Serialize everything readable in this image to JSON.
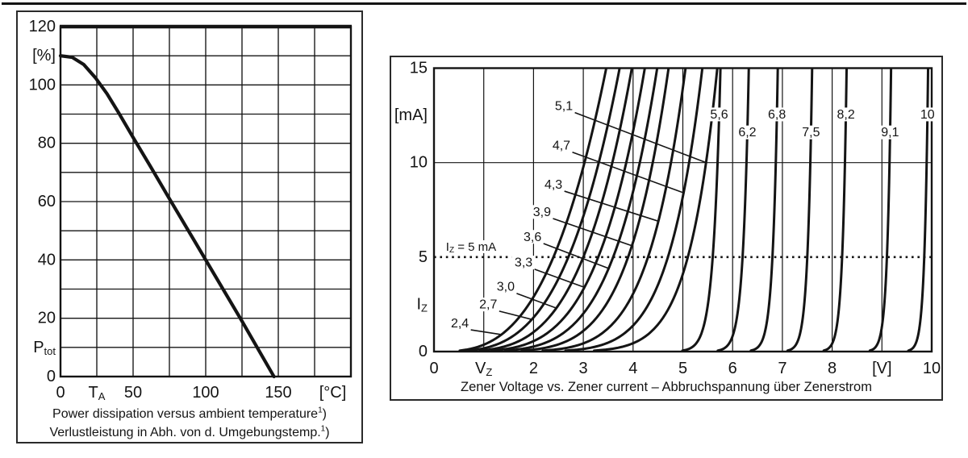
{
  "page": {
    "background": "#ffffff",
    "ink": "#141414"
  },
  "chart_data": [
    {
      "id": "power-derating",
      "type": "line",
      "title": "Power dissipation versus ambient temperature",
      "xlabel": "T_A [°C]",
      "ylabel": "P_tot [%]",
      "xlim": [
        0,
        200
      ],
      "ylim": [
        0,
        120
      ],
      "x_grid_step": 25,
      "y_grid_step": 10,
      "grid": true,
      "points": [
        [
          0,
          110
        ],
        [
          8,
          109.5
        ],
        [
          16,
          107
        ],
        [
          24,
          102.5
        ],
        [
          32,
          97
        ],
        [
          40,
          90.5
        ],
        [
          50,
          82
        ],
        [
          62,
          72
        ],
        [
          75,
          61
        ],
        [
          100,
          40
        ],
        [
          125,
          19
        ],
        [
          147,
          0
        ]
      ],
      "x_ticks": [
        {
          "x": 0,
          "parts": [
            {
              "t": "0"
            }
          ]
        },
        {
          "x": 25,
          "parts": [
            {
              "t": "T"
            },
            {
              "t": "A",
              "sub": true
            }
          ]
        },
        {
          "x": 50,
          "parts": [
            {
              "t": "50"
            }
          ]
        },
        {
          "x": 100,
          "parts": [
            {
              "t": "100"
            }
          ]
        },
        {
          "x": 150,
          "parts": [
            {
              "t": "150"
            }
          ]
        },
        {
          "x": 187.5,
          "parts": [
            {
              "t": "[°C]"
            }
          ]
        }
      ],
      "y_ticks": [
        {
          "y": 120,
          "parts": [
            {
              "t": "120"
            }
          ]
        },
        {
          "y": 110,
          "parts": [
            {
              "t": "[%]"
            }
          ]
        },
        {
          "y": 100,
          "parts": [
            {
              "t": "100"
            }
          ]
        },
        {
          "y": 80,
          "parts": [
            {
              "t": "80"
            }
          ]
        },
        {
          "y": 60,
          "parts": [
            {
              "t": "60"
            }
          ]
        },
        {
          "y": 40,
          "parts": [
            {
              "t": "40"
            }
          ]
        },
        {
          "y": 20,
          "parts": [
            {
              "t": "20"
            }
          ]
        },
        {
          "y": 10,
          "parts": [
            {
              "t": "P"
            },
            {
              "t": "tot",
              "sub": true
            }
          ]
        },
        {
          "y": 0,
          "parts": [
            {
              "t": "0"
            }
          ]
        }
      ],
      "captions": [
        {
          "text": "Power dissipation versus ambient temperature",
          "sup": "1",
          "tail": ")"
        },
        {
          "text": "Verlustleistung in Abh. von d. Umgebungstemp.",
          "sup": "1",
          "tail": ")"
        }
      ]
    },
    {
      "id": "zener-vi",
      "type": "line",
      "caption": "Zener Voltage vs. Zener current – Abbruchspannung über Zenerstrom",
      "xlabel": "V_Z [V]",
      "ylabel": "I_Z [mA]",
      "xlim": [
        0,
        10
      ],
      "ylim": [
        0,
        15
      ],
      "v_gridlines": [
        1,
        2,
        3,
        4,
        5,
        6,
        7,
        8,
        9
      ],
      "h_gridlines": [
        10
      ],
      "ref_line": {
        "i": 5,
        "style": "dotted",
        "label": {
          "x": 0.24,
          "i": 5.55,
          "parts": [
            {
              "t": "I"
            },
            {
              "t": "Z",
              "sub": true
            },
            {
              "t": " = 5 mA"
            }
          ]
        }
      },
      "x_ticks": [
        {
          "v": 0,
          "parts": [
            {
              "t": "0"
            }
          ]
        },
        {
          "v": 1,
          "parts": [
            {
              "t": "V"
            },
            {
              "t": "Z",
              "sub": true
            }
          ]
        },
        {
          "v": 2,
          "parts": [
            {
              "t": "2"
            }
          ]
        },
        {
          "v": 3,
          "parts": [
            {
              "t": "3"
            }
          ]
        },
        {
          "v": 4,
          "parts": [
            {
              "t": "4"
            }
          ]
        },
        {
          "v": 5,
          "parts": [
            {
              "t": "5"
            }
          ]
        },
        {
          "v": 6,
          "parts": [
            {
              "t": "6"
            }
          ]
        },
        {
          "v": 7,
          "parts": [
            {
              "t": "7"
            }
          ]
        },
        {
          "v": 8,
          "parts": [
            {
              "t": "8"
            }
          ]
        },
        {
          "v": 9,
          "parts": [
            {
              "t": "[V]"
            }
          ]
        },
        {
          "v": 10,
          "parts": [
            {
              "t": "10"
            }
          ]
        }
      ],
      "y_ticks": [
        {
          "i": 15,
          "parts": [
            {
              "t": "15"
            }
          ]
        },
        {
          "i": 12.5,
          "parts": [
            {
              "t": "[mA]"
            }
          ]
        },
        {
          "i": 10,
          "parts": [
            {
              "t": "10"
            }
          ]
        },
        {
          "i": 5,
          "parts": [
            {
              "t": "5"
            }
          ]
        },
        {
          "i": 2.5,
          "parts": [
            {
              "t": "I"
            },
            {
              "t": "Z",
              "sub": true
            }
          ]
        },
        {
          "i": 0,
          "parts": [
            {
              "t": "0"
            }
          ]
        }
      ],
      "test_current_mA": 5,
      "series": [
        {
          "vz": 2.4,
          "label": "2,4",
          "n": 3.0,
          "label_at": [
            0.52,
            1.5
          ],
          "leader_end_i": 0.9
        },
        {
          "vz": 2.7,
          "label": "2,7",
          "n": 3.4,
          "label_at": [
            1.09,
            2.49
          ],
          "leader_end_i": 1.7
        },
        {
          "vz": 3.0,
          "label": "3,0",
          "n": 3.9,
          "label_at": [
            1.44,
            3.43
          ],
          "leader_end_i": 2.3
        },
        {
          "vz": 3.3,
          "label": "3,3",
          "n": 4.4,
          "label_at": [
            1.8,
            4.71
          ],
          "leader_end_i": 3.4
        },
        {
          "vz": 3.6,
          "label": "3,6",
          "n": 5.0,
          "label_at": [
            1.98,
            6.07
          ],
          "leader_end_i": 4.4
        },
        {
          "vz": 3.9,
          "label": "3,9",
          "n": 5.8,
          "label_at": [
            2.17,
            7.39
          ],
          "leader_end_i": 5.6
        },
        {
          "vz": 4.3,
          "label": "4,3",
          "n": 6.8,
          "label_at": [
            2.4,
            8.84
          ],
          "leader_end_i": 6.9
        },
        {
          "vz": 4.7,
          "label": "4,7",
          "n": 8.0,
          "label_at": [
            2.56,
            10.9
          ],
          "leader_end_i": 8.4
        },
        {
          "vz": 5.1,
          "label": "5,1",
          "n": 10.0,
          "label_at": [
            2.61,
            13.0
          ],
          "leader_end_i": 10.0
        },
        {
          "vz": 5.6,
          "label": "5,6",
          "n": 40,
          "chip_i": 12.55
        },
        {
          "vz": 6.2,
          "label": "6,2",
          "n": 55,
          "chip_i": 11.6
        },
        {
          "vz": 6.8,
          "label": "6,8",
          "n": 70,
          "chip_i": 12.55
        },
        {
          "vz": 7.5,
          "label": "7,5",
          "n": 85,
          "chip_i": 11.6
        },
        {
          "vz": 8.2,
          "label": "8,2",
          "n": 100,
          "chip_i": 12.55
        },
        {
          "vz": 9.1,
          "label": "9,1",
          "n": 120,
          "chip_i": 11.6
        },
        {
          "vz": 10,
          "label": "10",
          "n": 140,
          "chip_i": 12.55,
          "draw_v": 9.85
        }
      ]
    }
  ]
}
